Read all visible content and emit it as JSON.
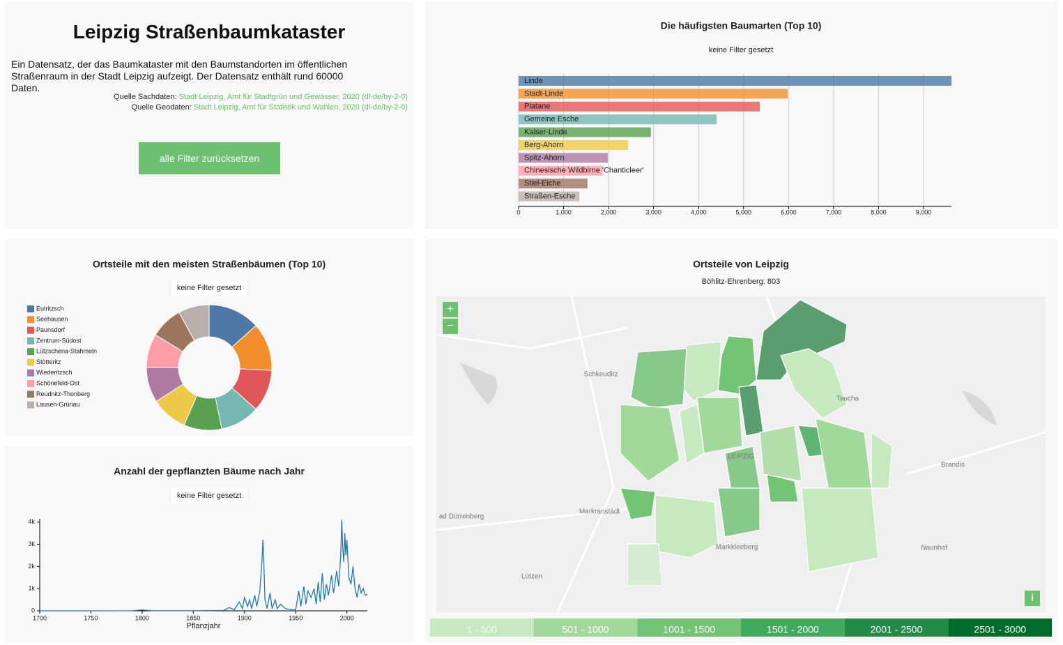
{
  "header": {
    "title": "Leipzig Straßenbaumkataster",
    "description": "Ein Datensatz, der das Baumkataster mit den Baumstandorten im öffentlichen Straßenraum in der Stadt Leipzig aufzeigt. Der Datensatz enthält rund 60000 Daten.",
    "sources": [
      {
        "label": "Quelle Sachdaten:",
        "link": "Stadt Leipzig, Amt für Stadtgrün und Gewässer, 2020",
        "license": "(dl-de/by-2-0)"
      },
      {
        "label": "Quelle Geodaten:",
        "link": "Stadt Leipzig, Amt für Statistik und Wahlen, 2020",
        "license": "(dl-de/by-2-0)"
      }
    ],
    "button": "alle Filter zurücksetzen"
  },
  "chart_data": [
    {
      "type": "bar",
      "title": "Die häufigsten Baumarten (Top 10)",
      "subtitle": "keine Filter gesetzt",
      "categories": [
        "Linde",
        "Stadt-Linde",
        "Platane",
        "Gemeine Esche",
        "Kaiser-Linde",
        "Berg-Ahorn",
        "Spitz-Ahorn",
        "Chinesische Wildbirne 'Chanticleer'",
        "Stiel-Eiche",
        "Straßen-Esche"
      ],
      "values": [
        9620,
        5980,
        5360,
        4400,
        2940,
        2430,
        1980,
        1870,
        1530,
        1350
      ],
      "colors": [
        "#4e79a7",
        "#f28e2c",
        "#e15759",
        "#76b7b2",
        "#59a14f",
        "#edc949",
        "#af7aa1",
        "#ff9da7",
        "#9c755f",
        "#bab0ab"
      ],
      "xlim": [
        0,
        9620
      ],
      "xticks": [
        0,
        {
          "value": 1000,
          "label": "1,000"
        },
        {
          "value": 2000,
          "label": "2,000"
        },
        {
          "value": 3000,
          "label": "3,000"
        },
        {
          "value": 4000,
          "label": "4,000"
        },
        {
          "value": 5000,
          "label": "5,000"
        },
        {
          "value": 6000,
          "label": "6,000"
        },
        {
          "value": 7000,
          "label": "7,000"
        },
        {
          "value": 8000,
          "label": "8,000"
        },
        {
          "value": 9000,
          "label": "9,000"
        }
      ],
      "grid": true
    },
    {
      "type": "pie",
      "title": "Ortsteile mit den meisten Straßenbäumen (Top 10)",
      "subtitle": "keine Filter gesetzt",
      "categories": [
        "Eutritzsch",
        "Seehausen",
        "Paunsdorf",
        "Zentrum-Südost",
        "Lützschena-Stahmeln",
        "Stötteritz",
        "Wiederitzsch",
        "Schönefeld-Ost",
        "Reudnitz-Thonberg",
        "Lausen-Grünau"
      ],
      "values": [
        1850,
        1700,
        1500,
        1400,
        1350,
        1300,
        1250,
        1200,
        1150,
        1100
      ],
      "colors": [
        "#4e79a7",
        "#f28e2c",
        "#e15759",
        "#76b7b2",
        "#59a14f",
        "#edc949",
        "#af7aa1",
        "#ff9da7",
        "#9c755f",
        "#bab0ab"
      ]
    },
    {
      "type": "line",
      "title": "Anzahl der gepflanzten Bäume nach Jahr",
      "subtitle": "keine Filter gesetzt",
      "x_label": "Pflanzjahr",
      "color": "#1f77b4",
      "x": [
        1700,
        1750,
        1790,
        1800,
        1810,
        1850,
        1870,
        1880,
        1885,
        1890,
        1895,
        1898,
        1900,
        1903,
        1905,
        1907,
        1910,
        1912,
        1915,
        1917,
        1918,
        1919,
        1920,
        1922,
        1925,
        1927,
        1930,
        1932,
        1935,
        1940,
        1945,
        1950,
        1953,
        1955,
        1958,
        1960,
        1962,
        1965,
        1968,
        1970,
        1972,
        1974,
        1976,
        1978,
        1980,
        1982,
        1985,
        1987,
        1990,
        1992,
        1994,
        1995,
        1996,
        1997,
        1998,
        1999,
        2000,
        2002,
        2004,
        2006,
        2008,
        2010,
        2012,
        2014,
        2016,
        2018,
        2020
      ],
      "values": [
        0,
        0,
        5,
        40,
        5,
        5,
        10,
        20,
        150,
        50,
        400,
        100,
        600,
        200,
        500,
        100,
        700,
        200,
        900,
        2200,
        3200,
        2000,
        500,
        100,
        800,
        100,
        500,
        100,
        300,
        100,
        50,
        50,
        900,
        200,
        1100,
        300,
        900,
        600,
        1000,
        300,
        1300,
        400,
        1700,
        500,
        1200,
        700,
        1600,
        800,
        1800,
        1100,
        2500,
        4100,
        2800,
        2200,
        3500,
        2500,
        3200,
        1500,
        1200,
        2000,
        1000,
        600,
        1200,
        800,
        1000,
        700,
        750
      ],
      "xlim": [
        1700,
        2020
      ],
      "xticks": [
        1700,
        1750,
        1800,
        1850,
        1900,
        1950,
        2000
      ],
      "ylim": [
        0,
        4150
      ],
      "yticks": [
        0,
        {
          "value": 1000,
          "label": "1k"
        },
        {
          "value": 2000,
          "label": "2k"
        },
        {
          "value": 3000,
          "label": "3k"
        },
        {
          "value": 4000,
          "label": "4k"
        }
      ]
    }
  ],
  "map": {
    "title": "Ortsteile von Leipzig",
    "subtitle": "Böhlitz-Ehrenberg: 803",
    "zoom_in": "+",
    "zoom_out": "−",
    "info": "i",
    "places": [
      "Schkeuditz",
      "Taucha",
      "Brandis",
      "Markranstädt",
      "ad Dürrenberg",
      "Markkleeberg",
      "Naunhof",
      "Lützen",
      "LEIPZIG"
    ],
    "legend": [
      "1 - 500",
      "501 - 1000",
      "1001 - 1500",
      "1501 - 2000",
      "2001 - 2500",
      "2501 - 3000"
    ],
    "legend_colors": [
      "#c7e9c0",
      "#a1d99b",
      "#74c476",
      "#41ab5d",
      "#238b45",
      "#006d2c"
    ]
  }
}
